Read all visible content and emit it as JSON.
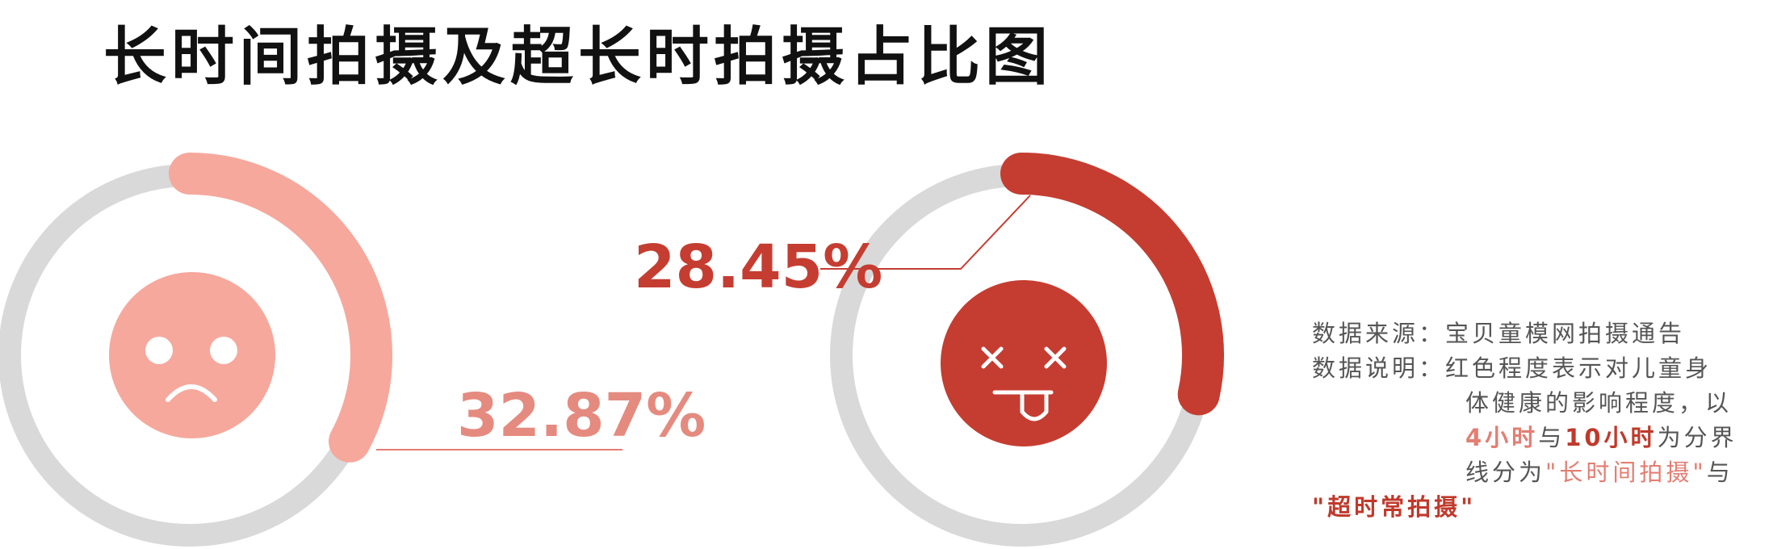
{
  "title": "长时间拍摄及超长时拍摄占比图",
  "chart_data": [
    {
      "type": "pie",
      "variant": "donut-progress",
      "value": 32.87,
      "label": "32.87%",
      "color": "#f6a89c",
      "face": "sad"
    },
    {
      "type": "pie",
      "variant": "donut-progress",
      "value": 28.45,
      "label": "28.45%",
      "color": "#c53d31",
      "face": "dizzy-tongue"
    }
  ],
  "colors": {
    "track": "#d9d9d9",
    "light": "#f6a89c",
    "light_text": "#e58a7f",
    "dark": "#c53d31"
  },
  "note": {
    "source_label": "数据来源：",
    "source_text": "宝贝童模网拍摄通告",
    "desc_label": "数据说明：",
    "desc_line1": "红色程度表示对儿童身",
    "desc_line2": "体健康的影响程度，以",
    "desc_4h": "4小时",
    "desc_and1": "与",
    "desc_10h": "10小时",
    "desc_as": "为分界",
    "desc_line4a": "线分为",
    "desc_long": "\"长时间拍摄\"",
    "desc_and2": "与",
    "desc_super": "\"超时常拍摄\""
  }
}
